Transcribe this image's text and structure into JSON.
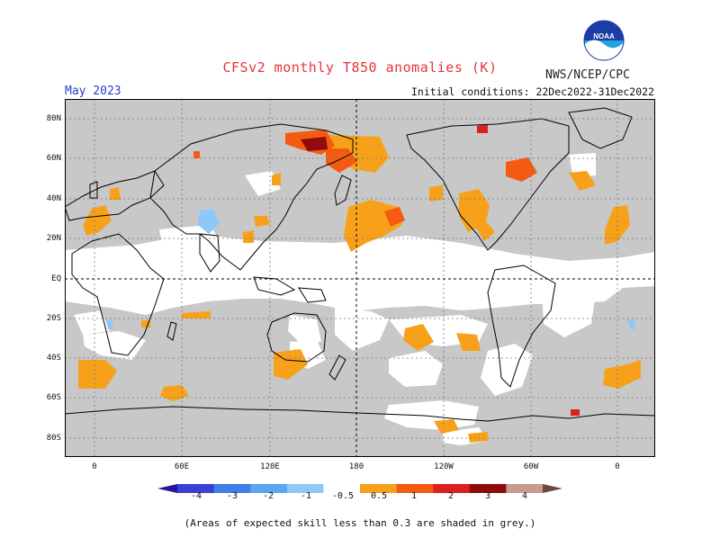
{
  "title": "CFSv2 monthly T850 anomalies (K)",
  "org": "NWS/NCEP/CPC",
  "logo_text": "NOAA",
  "valid_month": "May 2023",
  "initial_conditions": "Initial conditions: 22Dec2022-31Dec2022",
  "lat_labels": [
    "80N",
    "60N",
    "40N",
    "20N",
    "EQ",
    "20S",
    "40S",
    "60S",
    "80S"
  ],
  "lon_labels": [
    "0",
    "60E",
    "120E",
    "180",
    "120W",
    "60W",
    "0"
  ],
  "colorbar": {
    "labels": [
      "-4",
      "-3",
      "-2",
      "-1",
      "-0.5",
      "0.5",
      "1",
      "2",
      "3",
      "4"
    ],
    "colors": [
      "#2a1396",
      "#3b3fd4",
      "#3f7fe8",
      "#5aa6ef",
      "#8fc7f7",
      "#ffffff",
      "#f7a11a",
      "#f55a12",
      "#dc1f1f",
      "#8e0c0c",
      "#c89b8f",
      "#6b4a3e"
    ]
  },
  "footnote": "(Areas of expected skill less than 0.3 are shaded in grey.)",
  "colors": {
    "title": "#e8343b",
    "month": "#2c3ec8",
    "skill_grey": "#c8c8c8",
    "anomaly_0_5_1": "#f7a11a",
    "anomaly_1_2": "#f55a12",
    "anomaly_2_3": "#dc1f1f",
    "anomaly_3_4": "#8e0c0c",
    "anomaly_neg": "#8fc7f7"
  }
}
